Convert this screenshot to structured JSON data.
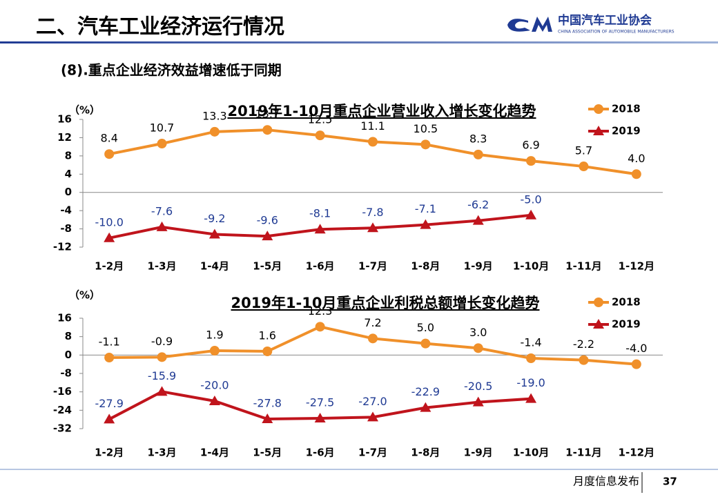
{
  "header": {
    "title": "二、汽车工业经济运行情况",
    "logo_name": "中国汽车工业协会",
    "logo_subtitle": "CHINA ASSOCIATION OF AUTOMOBILE MANUFACTURERS"
  },
  "subtitle": "(8).重点企业经济效益增速低于同期",
  "footer": {
    "text": "月度信息发布",
    "page": "37"
  },
  "chart_data": [
    {
      "type": "line",
      "title": "2019年1-10月重点企业营业收入增长变化趋势",
      "y_label": "（%）",
      "categories": [
        "1-2月",
        "1-3月",
        "1-4月",
        "1-5月",
        "1-6月",
        "1-7月",
        "1-8月",
        "1-9月",
        "1-10月",
        "1-11月",
        "1-12月"
      ],
      "series": [
        {
          "name": "2018",
          "color": "#f0902a",
          "marker": "circle",
          "label_color": "#000000",
          "values": [
            8.4,
            10.7,
            13.3,
            13.7,
            12.5,
            11.1,
            10.5,
            8.3,
            6.9,
            5.7,
            4.0
          ],
          "value_labels": [
            "8.4",
            "10.7",
            "13.3",
            "13.7",
            "12.5",
            "11.1",
            "10.5",
            "8.3",
            "6.9",
            "5.7",
            "4.0"
          ]
        },
        {
          "name": "2019",
          "color": "#c0141c",
          "marker": "triangle",
          "label_color": "#1f3a93",
          "values": [
            -10.0,
            -7.6,
            -9.2,
            -9.6,
            -8.1,
            -7.8,
            -7.1,
            -6.2,
            -5.0,
            null,
            null
          ],
          "value_labels": [
            "-10.0",
            "-7.6",
            "-9.2",
            "-9.6",
            "-8.1",
            "-7.8",
            "-7.1",
            "-6.2",
            "-5.0",
            null,
            null
          ]
        }
      ],
      "ylim": [
        -12,
        16
      ],
      "yticks": [
        -12,
        -8,
        -4,
        0,
        4,
        8,
        12,
        16
      ],
      "legend": "top-right"
    },
    {
      "type": "line",
      "title": "2019年1-10月重点企业利税总额增长变化趋势",
      "y_label": "（%）",
      "categories": [
        "1-2月",
        "1-3月",
        "1-4月",
        "1-5月",
        "1-6月",
        "1-7月",
        "1-8月",
        "1-9月",
        "1-10月",
        "1-11月",
        "1-12月"
      ],
      "series": [
        {
          "name": "2018",
          "color": "#f0902a",
          "marker": "circle",
          "label_color": "#000000",
          "values": [
            -1.1,
            -0.9,
            1.9,
            1.6,
            12.3,
            7.2,
            5.0,
            3.0,
            -1.4,
            -2.2,
            -4.0
          ],
          "value_labels": [
            "-1.1",
            "-0.9",
            "1.9",
            "1.6",
            "12.3",
            "7.2",
            "5.0",
            "3.0",
            "-1.4",
            "-2.2",
            "-4.0"
          ]
        },
        {
          "name": "2019",
          "color": "#c0141c",
          "marker": "triangle",
          "label_color": "#1f3a93",
          "values": [
            -27.9,
            -15.9,
            -20.0,
            -27.8,
            -27.5,
            -27.0,
            -22.9,
            -20.5,
            -19.0,
            null,
            null
          ],
          "value_labels": [
            "-27.9",
            "-15.9",
            "-20.0",
            "-27.8",
            "-27.5",
            "-27.0",
            "-22.9",
            "-20.5",
            "-19.0",
            null,
            null
          ]
        }
      ],
      "ylim": [
        -32,
        16
      ],
      "yticks": [
        -32,
        -24,
        -16,
        -8,
        0,
        8,
        16
      ],
      "legend": "top-right"
    }
  ]
}
